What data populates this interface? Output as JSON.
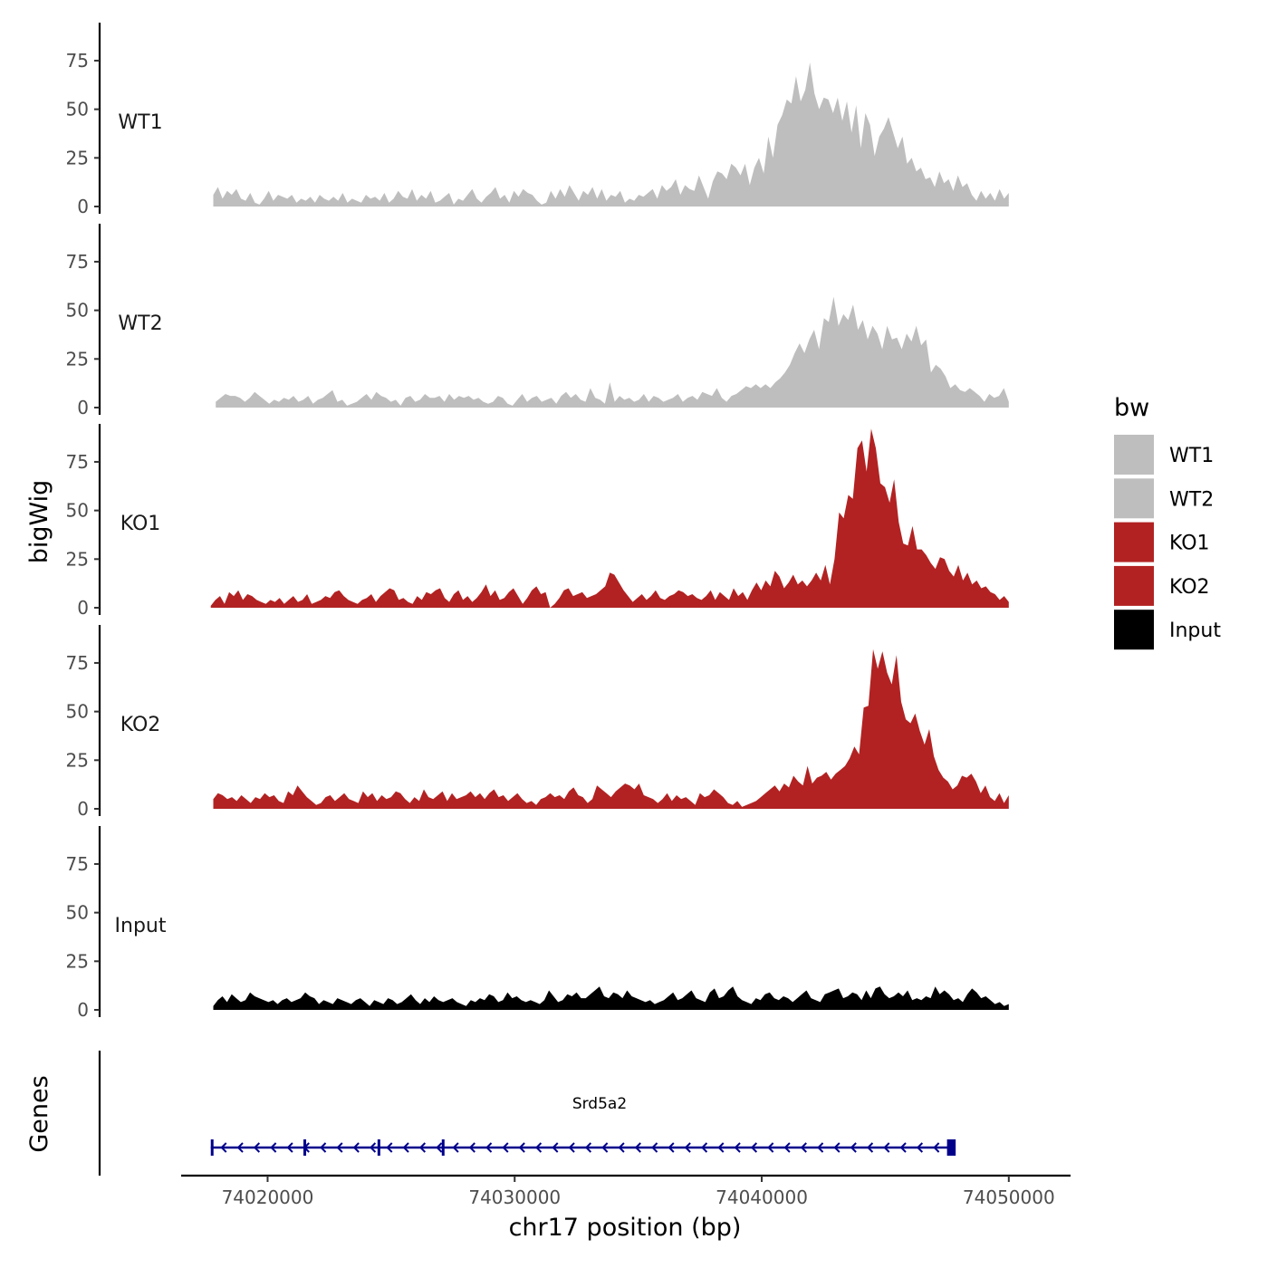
{
  "chart_data": {
    "type": "area",
    "chromosome": "chr17",
    "xlabel": "chr17 position (bp)",
    "ylabel": "bigWig",
    "genes_label": "Genes",
    "xlim": [
      74016500,
      74052500
    ],
    "x_ticks": [
      74020000,
      74030000,
      74040000,
      74050000
    ],
    "x_tick_labels": [
      "74020000",
      "74030000",
      "74040000",
      "74050000"
    ],
    "ylim": [
      0,
      95
    ],
    "y_ticks": [
      0,
      25,
      50,
      75
    ],
    "y_tick_labels": [
      "0",
      "25",
      "50",
      "75"
    ],
    "legend": {
      "title": "bw",
      "entries": [
        {
          "label": "WT1",
          "color": "#bebebe"
        },
        {
          "label": "WT2",
          "color": "#bebebe"
        },
        {
          "label": "KO1",
          "color": "#b22222"
        },
        {
          "label": "KO2",
          "color": "#b22222"
        },
        {
          "label": "Input",
          "color": "#000000"
        }
      ]
    },
    "series": [
      {
        "name": "WT1",
        "color": "#bebebe",
        "x_start": 74017800,
        "x_end": 74050000,
        "values": [
          6,
          10,
          4,
          8,
          6,
          9,
          4,
          3,
          7,
          2,
          1,
          4,
          8,
          3,
          6,
          5,
          4,
          6,
          2,
          4,
          3,
          5,
          2,
          6,
          4,
          3,
          5,
          3,
          7,
          2,
          4,
          3,
          2,
          6,
          4,
          5,
          3,
          7,
          2,
          4,
          8,
          5,
          4,
          9,
          3,
          6,
          4,
          8,
          2,
          3,
          5,
          7,
          1,
          4,
          3,
          6,
          9,
          4,
          2,
          5,
          7,
          10,
          4,
          6,
          2,
          8,
          5,
          9,
          7,
          6,
          3,
          1,
          2,
          8,
          4,
          9,
          5,
          11,
          7,
          3,
          8,
          6,
          10,
          4,
          9,
          3,
          6,
          5,
          8,
          2,
          4,
          3,
          6,
          5,
          7,
          9,
          4,
          11,
          8,
          10,
          14,
          6,
          11,
          9,
          8,
          16,
          10,
          4,
          13,
          18,
          17,
          14,
          22,
          20,
          16,
          22,
          11,
          20,
          25,
          17,
          36,
          25,
          42,
          47,
          55,
          53,
          67,
          54,
          60,
          74,
          58,
          50,
          56,
          55,
          48,
          56,
          44,
          54,
          38,
          52,
          30,
          48,
          42,
          26,
          36,
          40,
          46,
          38,
          30,
          36,
          22,
          25,
          18,
          20,
          14,
          15,
          10,
          18,
          12,
          14,
          8,
          16,
          10,
          12,
          6,
          3,
          8,
          4,
          7,
          3,
          9,
          4,
          7
        ]
      },
      {
        "name": "WT2",
        "color": "#bebebe",
        "x_start": 74017900,
        "x_end": 74050000,
        "values": [
          3,
          5,
          7,
          6,
          6,
          5,
          3,
          5,
          8,
          6,
          4,
          2,
          4,
          3,
          5,
          4,
          6,
          3,
          4,
          6,
          2,
          4,
          5,
          7,
          9,
          3,
          4,
          1,
          2,
          3,
          5,
          7,
          4,
          8,
          6,
          5,
          3,
          4,
          1,
          5,
          6,
          3,
          4,
          7,
          5,
          5,
          6,
          3,
          7,
          4,
          6,
          5,
          6,
          4,
          5,
          3,
          2,
          3,
          6,
          5,
          2,
          1,
          4,
          7,
          3,
          5,
          6,
          3,
          4,
          5,
          2,
          6,
          8,
          5,
          7,
          4,
          3,
          10,
          5,
          4,
          2,
          13,
          3,
          6,
          4,
          5,
          3,
          4,
          7,
          3,
          6,
          5,
          3,
          4,
          5,
          7,
          3,
          5,
          6,
          4,
          8,
          7,
          6,
          10,
          5,
          3,
          6,
          7,
          9,
          11,
          10,
          12,
          10,
          12,
          10,
          13,
          15,
          18,
          22,
          28,
          33,
          28,
          35,
          40,
          30,
          46,
          44,
          57,
          42,
          48,
          45,
          53,
          40,
          45,
          35,
          42,
          38,
          30,
          42,
          35,
          36,
          30,
          38,
          34,
          42,
          32,
          35,
          18,
          22,
          20,
          16,
          10,
          12,
          9,
          8,
          10,
          8,
          6,
          3,
          7,
          5,
          6,
          10,
          3
        ]
      },
      {
        "name": "KO1",
        "color": "#b22222",
        "x_start": 74017700,
        "x_end": 74050000,
        "values": [
          1,
          4,
          6,
          2,
          8,
          6,
          9,
          4,
          7,
          6,
          4,
          3,
          2,
          4,
          3,
          5,
          2,
          4,
          6,
          3,
          4,
          7,
          2,
          3,
          4,
          6,
          5,
          8,
          9,
          6,
          4,
          3,
          2,
          4,
          5,
          7,
          3,
          6,
          8,
          10,
          9,
          4,
          5,
          3,
          2,
          6,
          4,
          8,
          7,
          9,
          10,
          5,
          3,
          7,
          9,
          4,
          6,
          3,
          5,
          8,
          12,
          6,
          9,
          4,
          5,
          8,
          10,
          6,
          2,
          5,
          9,
          11,
          7,
          8,
          0,
          2,
          5,
          9,
          10,
          6,
          7,
          8,
          5,
          6,
          7,
          9,
          11,
          18,
          17,
          13,
          9,
          6,
          3,
          5,
          7,
          4,
          6,
          9,
          5,
          4,
          6,
          7,
          9,
          8,
          6,
          7,
          5,
          4,
          6,
          9,
          4,
          8,
          6,
          4,
          10,
          6,
          8,
          4,
          9,
          13,
          9,
          14,
          11,
          19,
          16,
          10,
          13,
          17,
          12,
          14,
          11,
          14,
          18,
          14,
          22,
          12,
          25,
          49,
          46,
          58,
          56,
          82,
          86,
          70,
          92,
          82,
          64,
          62,
          54,
          66,
          44,
          33,
          32,
          42,
          30,
          30,
          27,
          23,
          20,
          26,
          25,
          19,
          16,
          22,
          14,
          18,
          12,
          14,
          10,
          11,
          8,
          7,
          4,
          6,
          3
        ]
      },
      {
        "name": "KO2",
        "color": "#b22222",
        "x_start": 74017800,
        "x_end": 74050000,
        "values": [
          5,
          8,
          7,
          5,
          6,
          4,
          7,
          5,
          3,
          6,
          5,
          8,
          6,
          7,
          4,
          3,
          9,
          7,
          12,
          9,
          6,
          4,
          2,
          3,
          6,
          7,
          4,
          6,
          8,
          5,
          4,
          3,
          9,
          6,
          8,
          4,
          7,
          5,
          6,
          9,
          8,
          5,
          3,
          6,
          4,
          10,
          6,
          5,
          7,
          9,
          4,
          8,
          5,
          6,
          7,
          9,
          6,
          8,
          5,
          8,
          10,
          6,
          7,
          4,
          6,
          8,
          5,
          3,
          4,
          2,
          5,
          6,
          8,
          6,
          7,
          5,
          9,
          11,
          7,
          6,
          3,
          5,
          12,
          10,
          8,
          6,
          9,
          11,
          13,
          12,
          10,
          13,
          7,
          6,
          5,
          3,
          5,
          8,
          4,
          7,
          5,
          6,
          4,
          2,
          8,
          6,
          7,
          10,
          8,
          6,
          3,
          2,
          4,
          1,
          2,
          3,
          4,
          6,
          8,
          10,
          12,
          9,
          13,
          11,
          17,
          14,
          12,
          22,
          13,
          16,
          17,
          19,
          15,
          18,
          20,
          22,
          26,
          32,
          28,
          52,
          53,
          82,
          72,
          81,
          70,
          64,
          79,
          55,
          46,
          44,
          49,
          40,
          33,
          41,
          27,
          20,
          16,
          14,
          10,
          12,
          17,
          16,
          18,
          14,
          8,
          12,
          6,
          4,
          8,
          3,
          7
        ]
      },
      {
        "name": "Input",
        "color": "#000000",
        "x_start": 74017800,
        "x_end": 74050000,
        "values": [
          2,
          5,
          7,
          4,
          8,
          6,
          4,
          5,
          9,
          7,
          6,
          5,
          4,
          5,
          3,
          5,
          6,
          4,
          5,
          6,
          9,
          7,
          6,
          3,
          5,
          4,
          3,
          6,
          5,
          4,
          3,
          5,
          6,
          4,
          2,
          5,
          4,
          3,
          6,
          5,
          3,
          4,
          6,
          8,
          5,
          3,
          6,
          4,
          7,
          5,
          4,
          5,
          6,
          4,
          3,
          2,
          5,
          4,
          6,
          5,
          8,
          7,
          4,
          5,
          9,
          6,
          7,
          5,
          4,
          5,
          4,
          3,
          5,
          10,
          7,
          4,
          5,
          8,
          7,
          9,
          6,
          6,
          8,
          10,
          12,
          7,
          6,
          9,
          8,
          6,
          10,
          7,
          6,
          5,
          4,
          5,
          3,
          4,
          5,
          7,
          9,
          5,
          6,
          8,
          10,
          6,
          5,
          4,
          9,
          11,
          6,
          7,
          10,
          12,
          7,
          5,
          4,
          3,
          6,
          5,
          8,
          9,
          6,
          5,
          7,
          6,
          4,
          6,
          8,
          10,
          6,
          5,
          4,
          8,
          9,
          10,
          11,
          6,
          7,
          9,
          8,
          5,
          10,
          6,
          11,
          12,
          8,
          6,
          7,
          9,
          7,
          10,
          5,
          6,
          5,
          7,
          6,
          12,
          8,
          10,
          8,
          5,
          6,
          4,
          8,
          11,
          9,
          6,
          7,
          5,
          3,
          4,
          2,
          3
        ]
      }
    ],
    "genes": [
      {
        "name": "Srd5a2",
        "strand": "-",
        "start": 74017700,
        "end": 74047800,
        "color": "#00008b",
        "exons": [
          [
            74017700,
            74017800
          ],
          [
            74021450,
            74021550
          ],
          [
            74024450,
            74024550
          ],
          [
            74027050,
            74027150
          ],
          [
            74047500,
            74047850
          ]
        ]
      }
    ]
  }
}
